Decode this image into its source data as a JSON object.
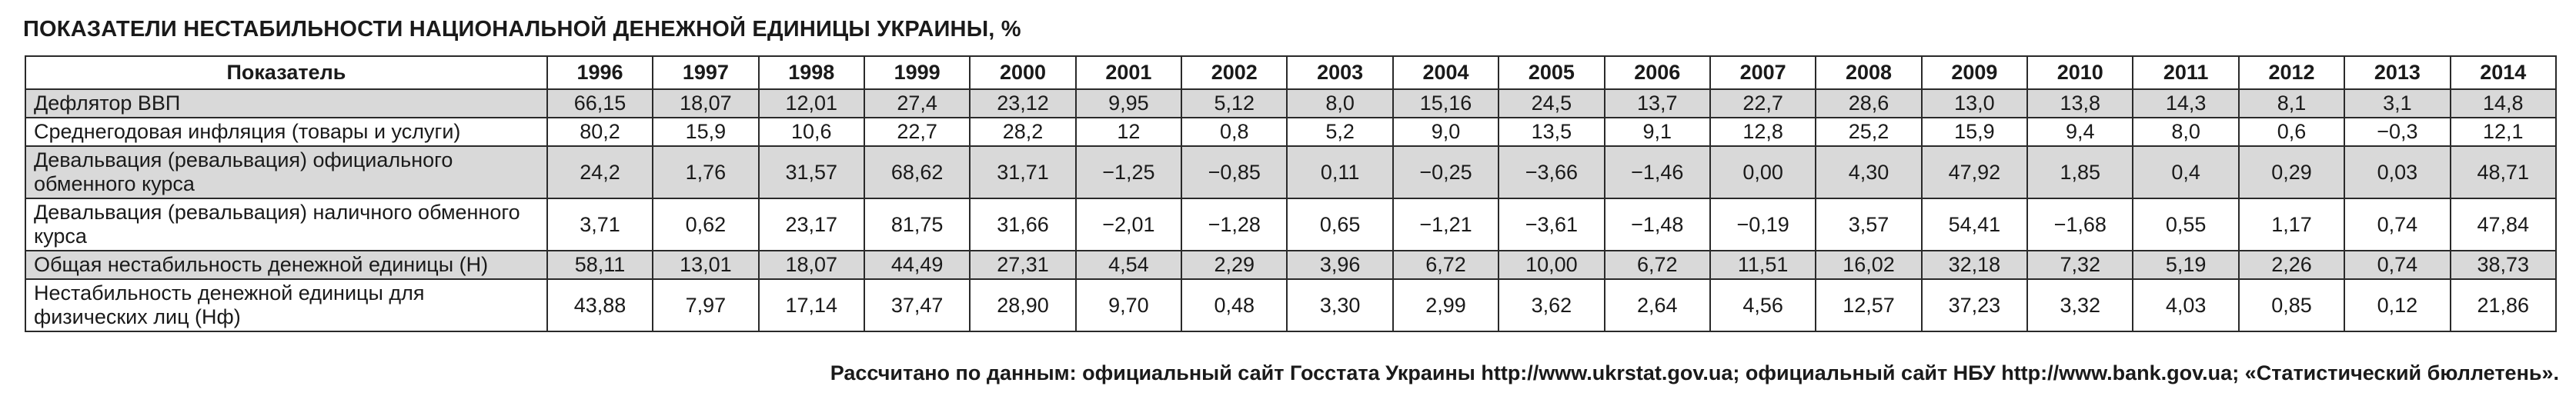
{
  "title": "ПОКАЗАТЕЛИ НЕСТАБИЛЬНОСТИ НАЦИОНАЛЬНОЙ ДЕНЕЖНОЙ ЕДИНИЦЫ УКРАИНЫ, %",
  "table": {
    "header_label": "Показатель",
    "years": [
      "1996",
      "1997",
      "1998",
      "1999",
      "2000",
      "2001",
      "2002",
      "2003",
      "2004",
      "2005",
      "2006",
      "2007",
      "2008",
      "2009",
      "2010",
      "2011",
      "2012",
      "2013",
      "2014"
    ],
    "rows": [
      {
        "label": "Дефлятор ВВП",
        "shaded": true,
        "values": [
          "66,15",
          "18,07",
          "12,01",
          "27,4",
          "23,12",
          "9,95",
          "5,12",
          "8,0",
          "15,16",
          "24,5",
          "13,7",
          "22,7",
          "28,6",
          "13,0",
          "13,8",
          "14,3",
          "8,1",
          "3,1",
          "14,8"
        ]
      },
      {
        "label": "Среднегодовая инфляция (товары и услуги)",
        "shaded": false,
        "values": [
          "80,2",
          "15,9",
          "10,6",
          "22,7",
          "28,2",
          "12",
          "0,8",
          "5,2",
          "9,0",
          "13,5",
          "9,1",
          "12,8",
          "25,2",
          "15,9",
          "9,4",
          "8,0",
          "0,6",
          "−0,3",
          "12,1"
        ]
      },
      {
        "label": "Девальвация (ревальвация) официального обменного курса",
        "shaded": true,
        "values": [
          "24,2",
          "1,76",
          "31,57",
          "68,62",
          "31,71",
          "−1,25",
          "−0,85",
          "0,11",
          "−0,25",
          "−3,66",
          "−1,46",
          "0,00",
          "4,30",
          "47,92",
          "1,85",
          "0,4",
          "0,29",
          "0,03",
          "48,71"
        ]
      },
      {
        "label": "Девальвация (ревальвация) наличного обменного курса",
        "shaded": false,
        "values": [
          "3,71",
          "0,62",
          "23,17",
          "81,75",
          "31,66",
          "−2,01",
          "−1,28",
          "0,65",
          "−1,21",
          "−3,61",
          "−1,48",
          "−0,19",
          "3,57",
          "54,41",
          "−1,68",
          "0,55",
          "1,17",
          "0,74",
          "47,84"
        ]
      },
      {
        "label": "Общая нестабильность денежной единицы (Н)",
        "shaded": true,
        "values": [
          "58,11",
          "13,01",
          "18,07",
          "44,49",
          "27,31",
          "4,54",
          "2,29",
          "3,96",
          "6,72",
          "10,00",
          "6,72",
          "11,51",
          "16,02",
          "32,18",
          "7,32",
          "5,19",
          "2,26",
          "0,74",
          "38,73"
        ]
      },
      {
        "label": "Нестабильность денежной единицы для физических лиц (Нф)",
        "shaded": false,
        "values": [
          "43,88",
          "7,97",
          "17,14",
          "37,47",
          "28,90",
          "9,70",
          "0,48",
          "3,30",
          "2,99",
          "3,62",
          "2,64",
          "4,56",
          "12,57",
          "37,23",
          "3,32",
          "4,03",
          "0,85",
          "0,12",
          "21,86"
        ]
      }
    ]
  },
  "source_note": "Рассчитано по данным: официальный сайт Госстата Украины http://www.ukrstat.gov.ua; официальный сайт НБУ http://www.bank.gov.ua; «Статистический бюллетень».",
  "colors": {
    "shaded_row": "#d9d9d9",
    "border": "#2a2a2a",
    "text": "#1a1a1a"
  }
}
